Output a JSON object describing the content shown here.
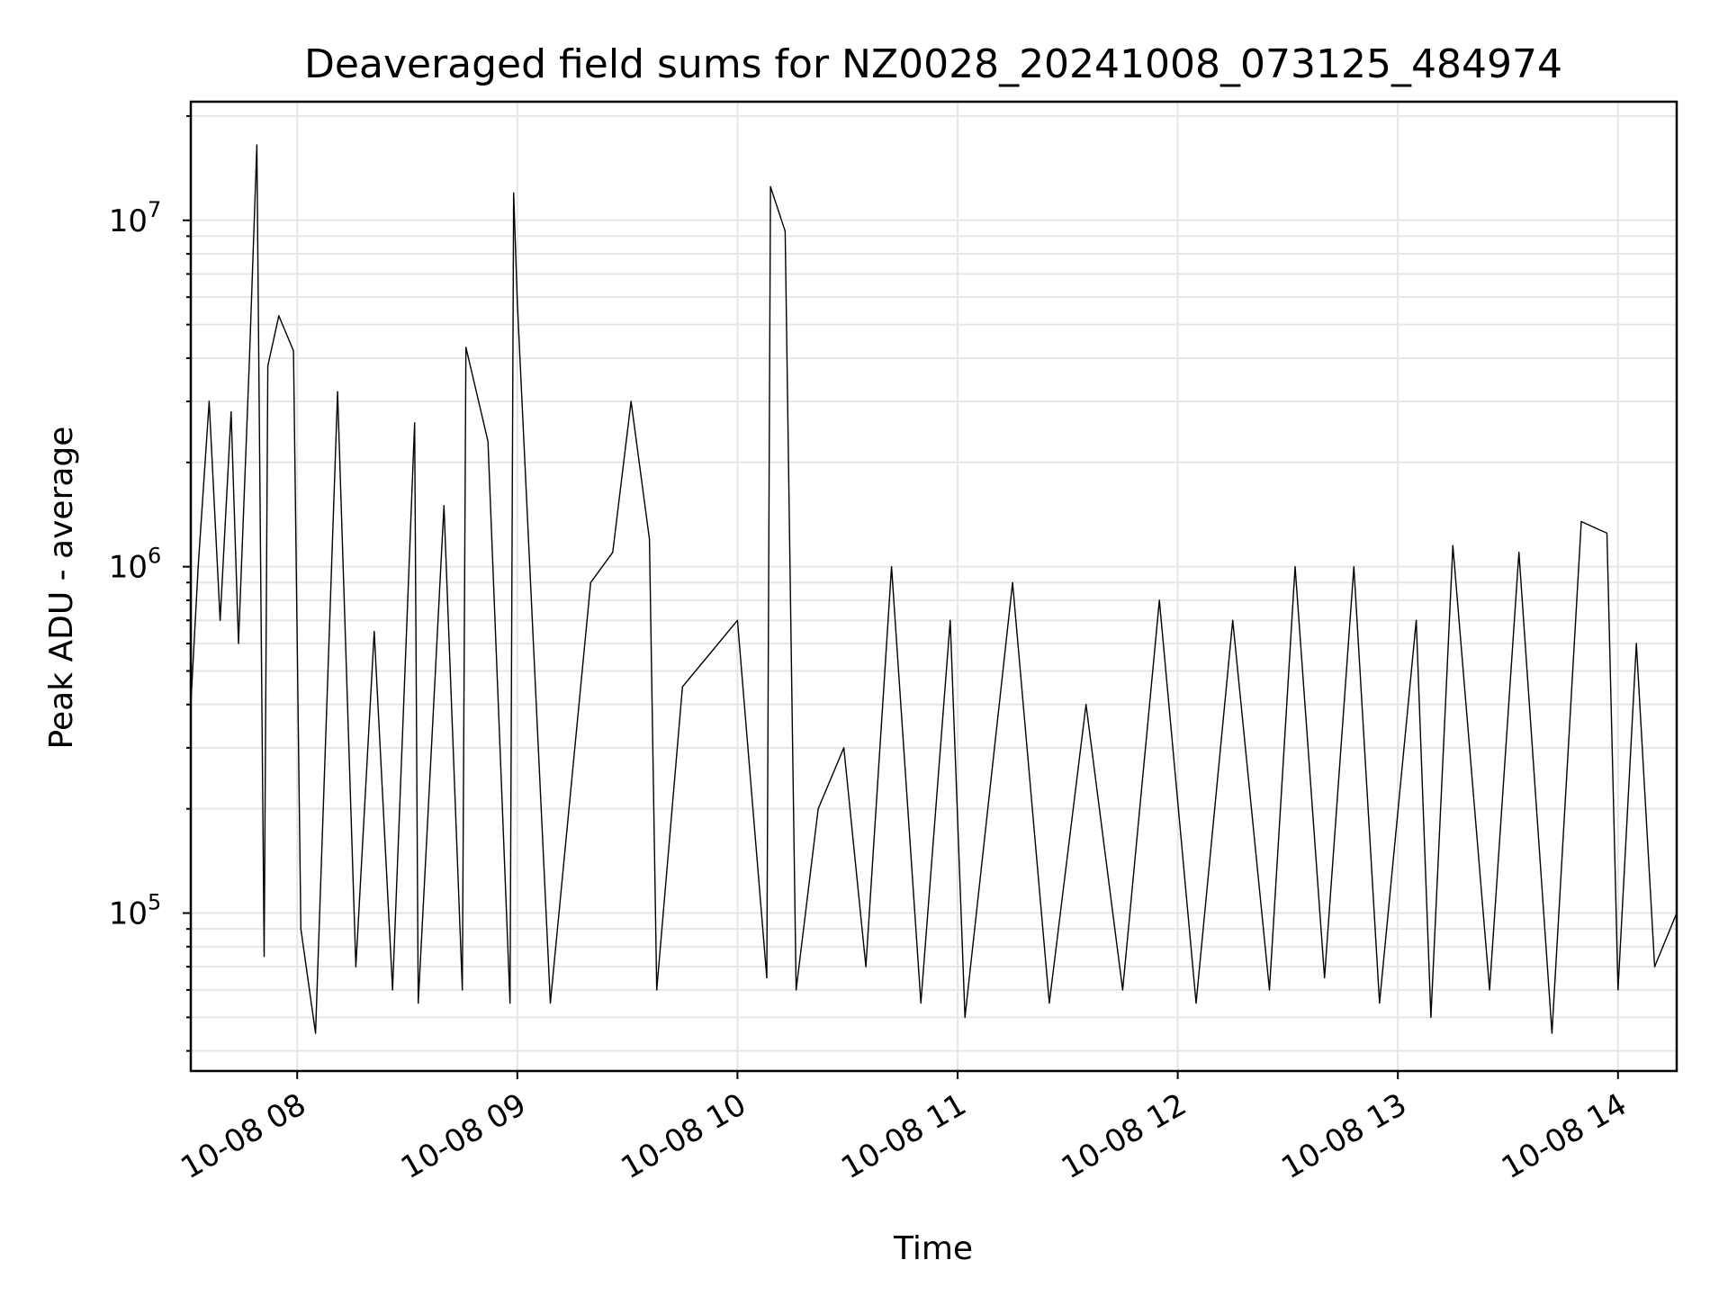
{
  "chart_data": {
    "type": "line",
    "title": "Deaveraged field sums for NZ0028_20241008_073125_484974",
    "xlabel": "Time",
    "ylabel": "Peak ADU - average",
    "x_type": "datetime",
    "y_scale": "log",
    "xlim": [
      "2024-10-08 07:31",
      "2024-10-08 14:16"
    ],
    "ylim": [
      35000,
      22000000
    ],
    "x_ticks": [
      {
        "value": "2024-10-08 08:00",
        "label": "10-08 08"
      },
      {
        "value": "2024-10-08 09:00",
        "label": "10-08 09"
      },
      {
        "value": "2024-10-08 10:00",
        "label": "10-08 10"
      },
      {
        "value": "2024-10-08 11:00",
        "label": "10-08 11"
      },
      {
        "value": "2024-10-08 12:00",
        "label": "10-08 12"
      },
      {
        "value": "2024-10-08 13:00",
        "label": "10-08 13"
      },
      {
        "value": "2024-10-08 14:00",
        "label": "10-08 14"
      }
    ],
    "y_ticks": [
      {
        "value": 100000,
        "base": "10",
        "exp": "5"
      },
      {
        "value": 1000000,
        "base": "10",
        "exp": "6"
      },
      {
        "value": 10000000,
        "base": "10",
        "exp": "7"
      }
    ],
    "grid": true,
    "legend": "none",
    "series": [
      {
        "color": "#000000",
        "points": [
          [
            "2024-10-08 07:31",
            400000
          ],
          [
            "2024-10-08 07:33",
            1000000
          ],
          [
            "2024-10-08 07:36",
            3000000
          ],
          [
            "2024-10-08 07:39",
            700000
          ],
          [
            "2024-10-08 07:42",
            2800000
          ],
          [
            "2024-10-08 07:44",
            600000
          ],
          [
            "2024-10-08 07:47",
            4000000
          ],
          [
            "2024-10-08 07:49",
            16500000
          ],
          [
            "2024-10-08 07:51",
            75000
          ],
          [
            "2024-10-08 07:52",
            3800000
          ],
          [
            "2024-10-08 07:55",
            5300000
          ],
          [
            "2024-10-08 07:59",
            4200000
          ],
          [
            "2024-10-08 08:01",
            90000
          ],
          [
            "2024-10-08 08:05",
            45000
          ],
          [
            "2024-10-08 08:11",
            3200000
          ],
          [
            "2024-10-08 08:16",
            70000
          ],
          [
            "2024-10-08 08:21",
            650000
          ],
          [
            "2024-10-08 08:26",
            60000
          ],
          [
            "2024-10-08 08:32",
            2600000
          ],
          [
            "2024-10-08 08:33",
            55000
          ],
          [
            "2024-10-08 08:40",
            1500000
          ],
          [
            "2024-10-08 08:45",
            60000
          ],
          [
            "2024-10-08 08:46",
            4300000
          ],
          [
            "2024-10-08 08:52",
            2300000
          ],
          [
            "2024-10-08 08:58",
            55000
          ],
          [
            "2024-10-08 08:59",
            12000000
          ],
          [
            "2024-10-08 09:00",
            5800000
          ],
          [
            "2024-10-08 09:09",
            55000
          ],
          [
            "2024-10-08 09:20",
            900000
          ],
          [
            "2024-10-08 09:26",
            1100000
          ],
          [
            "2024-10-08 09:31",
            3000000
          ],
          [
            "2024-10-08 09:36",
            1200000
          ],
          [
            "2024-10-08 09:38",
            60000
          ],
          [
            "2024-10-08 09:45",
            450000
          ],
          [
            "2024-10-08 10:00",
            700000
          ],
          [
            "2024-10-08 10:08",
            65000
          ],
          [
            "2024-10-08 10:09",
            12500000
          ],
          [
            "2024-10-08 10:13",
            9300000
          ],
          [
            "2024-10-08 10:16",
            60000
          ],
          [
            "2024-10-08 10:22",
            200000
          ],
          [
            "2024-10-08 10:29",
            300000
          ],
          [
            "2024-10-08 10:35",
            70000
          ],
          [
            "2024-10-08 10:42",
            1000000
          ],
          [
            "2024-10-08 10:50",
            55000
          ],
          [
            "2024-10-08 10:58",
            700000
          ],
          [
            "2024-10-08 11:02",
            50000
          ],
          [
            "2024-10-08 11:15",
            900000
          ],
          [
            "2024-10-08 11:25",
            55000
          ],
          [
            "2024-10-08 11:35",
            400000
          ],
          [
            "2024-10-08 11:45",
            60000
          ],
          [
            "2024-10-08 11:55",
            800000
          ],
          [
            "2024-10-08 12:05",
            55000
          ],
          [
            "2024-10-08 12:15",
            700000
          ],
          [
            "2024-10-08 12:25",
            60000
          ],
          [
            "2024-10-08 12:32",
            1000000
          ],
          [
            "2024-10-08 12:40",
            65000
          ],
          [
            "2024-10-08 12:48",
            1000000
          ],
          [
            "2024-10-08 12:55",
            55000
          ],
          [
            "2024-10-08 13:05",
            700000
          ],
          [
            "2024-10-08 13:09",
            50000
          ],
          [
            "2024-10-08 13:15",
            1150000
          ],
          [
            "2024-10-08 13:25",
            60000
          ],
          [
            "2024-10-08 13:33",
            1100000
          ],
          [
            "2024-10-08 13:42",
            45000
          ],
          [
            "2024-10-08 13:50",
            1350000
          ],
          [
            "2024-10-08 13:57",
            1250000
          ],
          [
            "2024-10-08 14:00",
            60000
          ],
          [
            "2024-10-08 14:05",
            600000
          ],
          [
            "2024-10-08 14:10",
            70000
          ],
          [
            "2024-10-08 14:16",
            100000
          ]
        ]
      }
    ]
  }
}
